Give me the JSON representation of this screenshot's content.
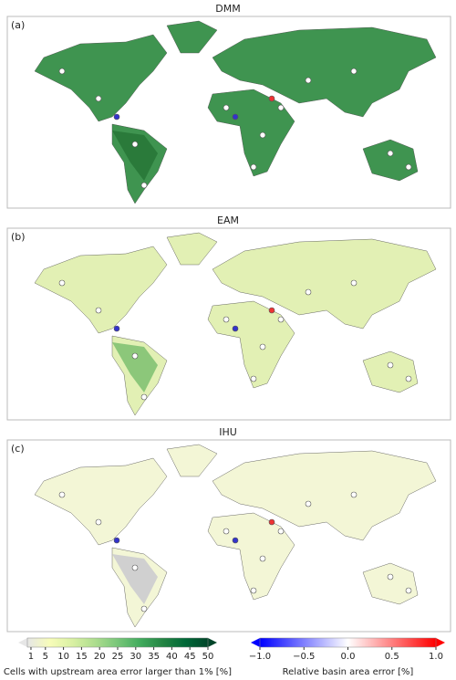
{
  "panels": [
    {
      "label": "(a)",
      "title": "DMM"
    },
    {
      "label": "(b)",
      "title": "EAM"
    },
    {
      "label": "(c)",
      "title": "IHU"
    }
  ],
  "colorbars": [
    {
      "label": "Cells with upstream area error larger than 1% [%]",
      "lim": [
        0,
        50
      ],
      "ticks": [
        1,
        5,
        10,
        15,
        20,
        25,
        30,
        35,
        40,
        45,
        50
      ],
      "colors": [
        "#e6e6e6",
        "#f7fcb9",
        "#d9f0a3",
        "#addd8e",
        "#78c679",
        "#41ab5d",
        "#238443",
        "#006837",
        "#004529"
      ]
    },
    {
      "label": "Relative basin area error [%]",
      "lim": [
        -1,
        1
      ],
      "ticks": [
        {
          "value": -1,
          "label": "−1.0"
        },
        {
          "value": -0.5,
          "label": "−0.5"
        },
        {
          "value": 0,
          "label": "0.0"
        },
        {
          "value": 0.5,
          "label": "0.5"
        },
        {
          "value": 1,
          "label": "1.0"
        }
      ],
      "colors": [
        "#0000ff",
        "#ffffff",
        "#ff0000"
      ]
    }
  ]
}
